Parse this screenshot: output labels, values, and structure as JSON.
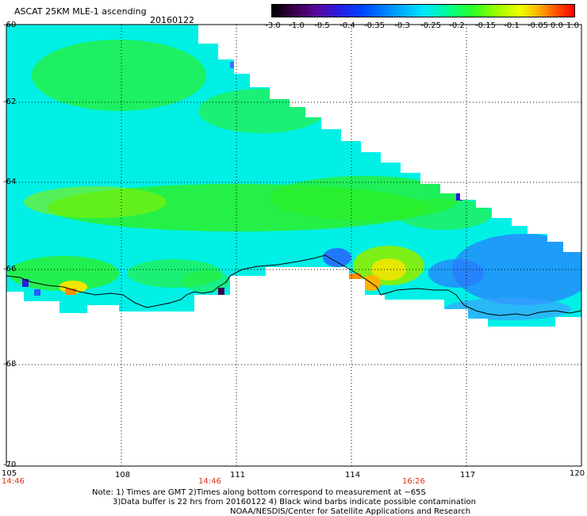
{
  "title": "ASCAT 25KM MLE-1 ascending",
  "date": "20160122",
  "colorbar": {
    "labels": [
      "-3.0",
      "-1.0",
      "-0.5",
      "-0.4",
      "-0.35",
      "-0.3",
      "-0.25",
      "-0.2",
      "-0.15",
      "-0.1",
      "-0.05",
      "0.0",
      "1.0"
    ]
  },
  "axes": {
    "lat_labels": [
      "-60",
      "-62",
      "-64",
      "-66",
      "-68",
      "-70"
    ],
    "lon_labels": [
      "105",
      "108",
      "111",
      "114",
      "117",
      "120"
    ]
  },
  "times": [
    "14:46",
    "14:46",
    "16:26"
  ],
  "notes": {
    "line1": "Note: 1) Times are GMT 2)Times along bottom correspond to measurement at ~65S",
    "line2": "3)Data buffer is 22 hrs from 20160122 4) Black wind barbs indicate possible contamination",
    "line3": "NOAA/NESDIS/Center for Satellite Applications and Research"
  },
  "colors": {
    "cyan": "#00f0e6",
    "green": "#2af02a",
    "blue": "#2a78ff",
    "yellow": "#f0e600",
    "orange": "#ff8c00"
  }
}
